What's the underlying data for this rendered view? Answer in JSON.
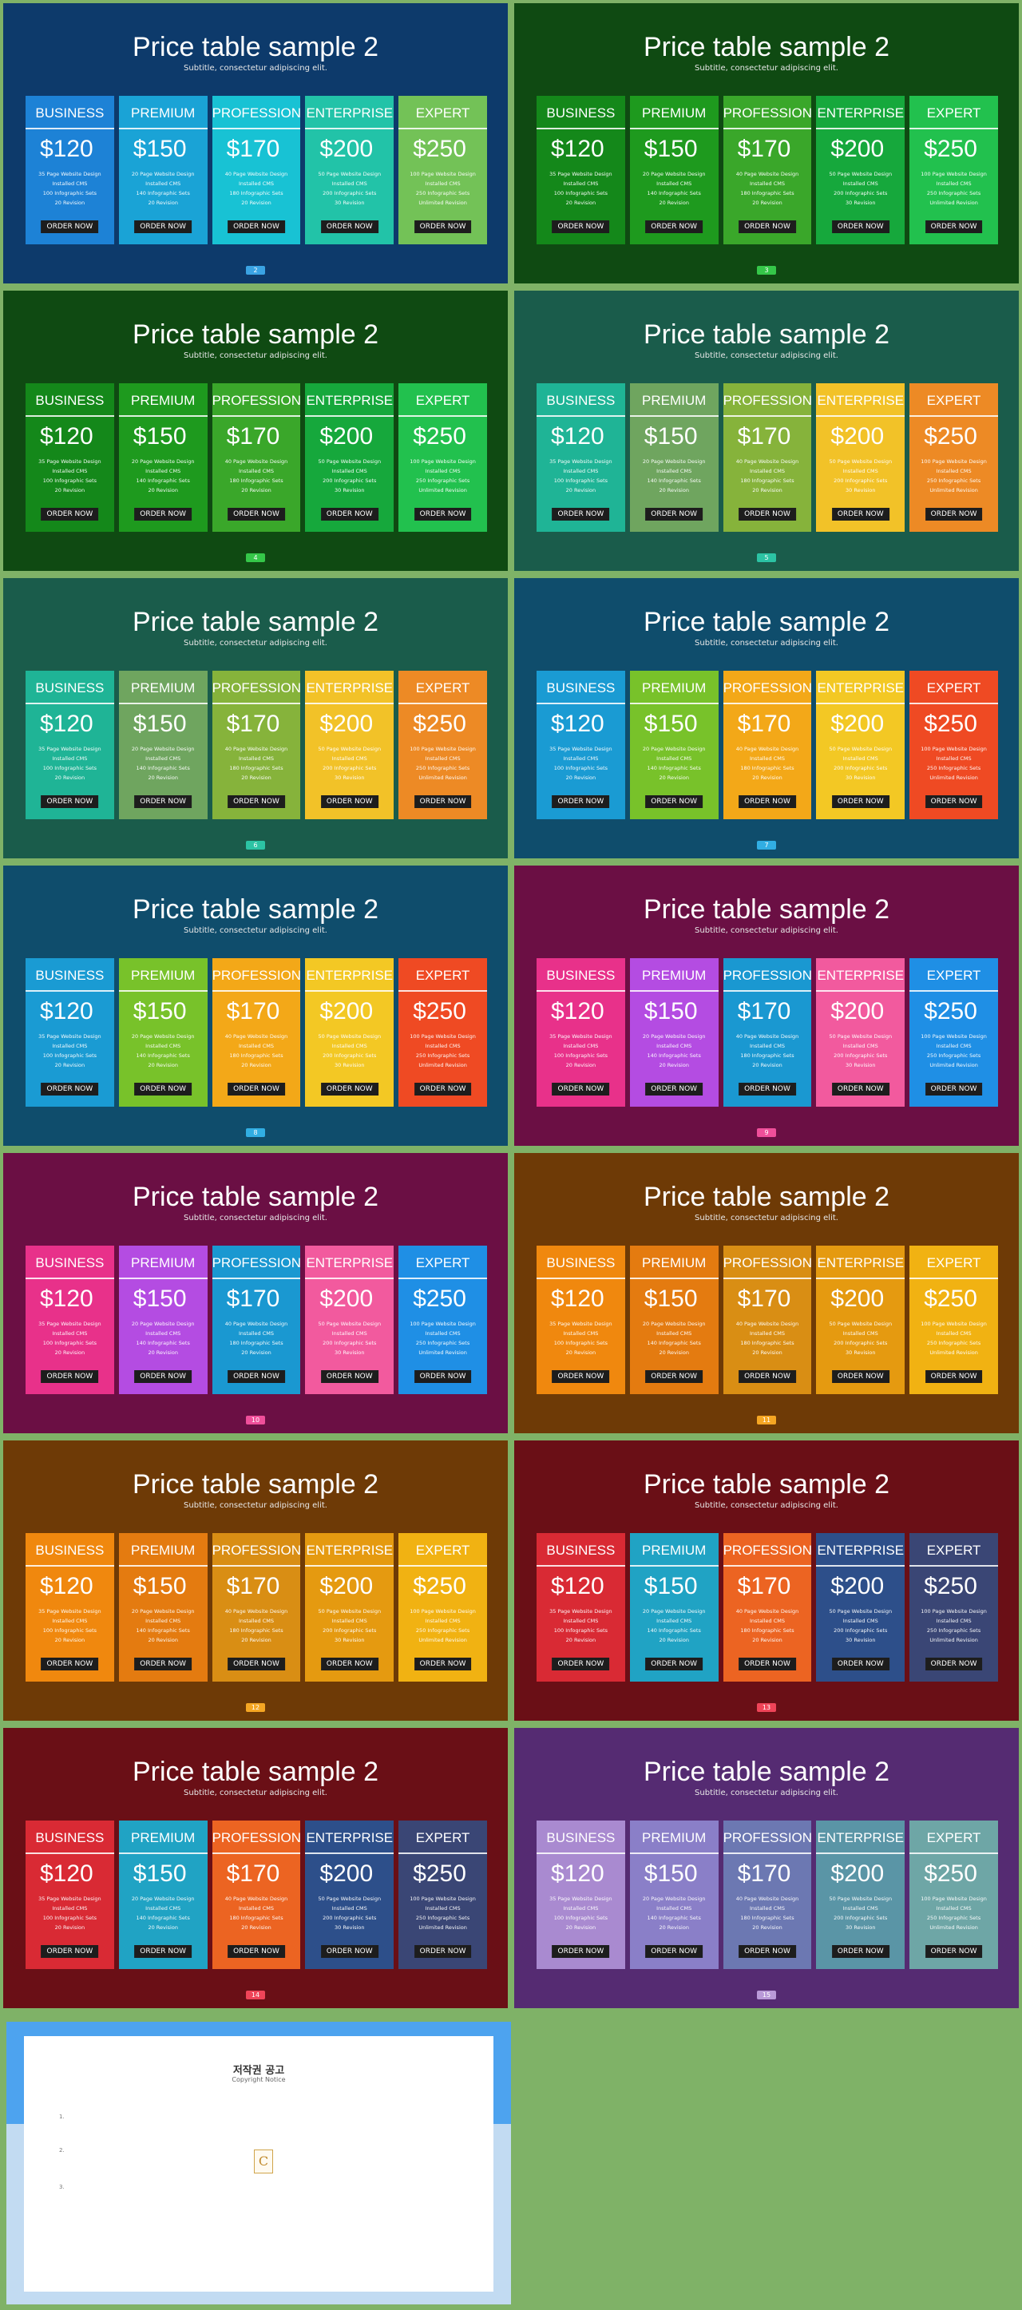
{
  "common": {
    "title": "Price table sample 2",
    "subtitle": "Subtitle, consectetur adipiscing elit.",
    "order_label": "ORDER NOW",
    "plans": [
      {
        "name": "BUSINESS",
        "price": "$120",
        "features": [
          "35 Page Website Design",
          "Installed CMS",
          "100 Infographic Sets",
          "20 Revision"
        ]
      },
      {
        "name": "PREMIUM",
        "price": "$150",
        "features": [
          "20 Page Website Design",
          "Installed CMS",
          "140 Infographic Sets",
          "20 Revision"
        ]
      },
      {
        "name": "PROFESSIONAL",
        "price": "$170",
        "features": [
          "40 Page Website Design",
          "Installed CMS",
          "180 Infographic Sets",
          "20 Revision"
        ]
      },
      {
        "name": "ENTERPRISE",
        "price": "$200",
        "features": [
          "50 Page Website Design",
          "Installed CMS",
          "200 Infographic Sets",
          "30 Revision"
        ]
      },
      {
        "name": "EXPERT",
        "price": "$250",
        "features": [
          "100 Page Website Design",
          "Installed CMS",
          "250 Infographic Sets",
          "Unlimited Revision"
        ]
      }
    ]
  },
  "slides": [
    {
      "page": "2",
      "bg": "#0d3a6b",
      "badge": "#3aa3e3",
      "colors": [
        "#1d82d6",
        "#1aa3d6",
        "#18c2d4",
        "#22c3a8",
        "#73c257"
      ]
    },
    {
      "page": "3",
      "bg": "#0f4a12",
      "badge": "#35c749",
      "colors": [
        "#14881a",
        "#1e9a1e",
        "#3aa72a",
        "#16a83c",
        "#22c14e"
      ]
    },
    {
      "page": "4",
      "bg": "#0f4a12",
      "badge": "#35c749",
      "colors": [
        "#14881a",
        "#1e9a1e",
        "#3aa72a",
        "#16a83c",
        "#22c14e"
      ]
    },
    {
      "page": "5",
      "bg": "#1a5c4b",
      "badge": "#2cc3a4",
      "colors": [
        "#1fb496",
        "#6fa55f",
        "#86b33b",
        "#f2c228",
        "#ed8a25"
      ]
    },
    {
      "page": "6",
      "bg": "#1a5c4b",
      "badge": "#2cc3a4",
      "colors": [
        "#1fb496",
        "#6fa55f",
        "#86b33b",
        "#f2c228",
        "#ed8a25"
      ]
    },
    {
      "page": "7",
      "bg": "#0f4d6c",
      "badge": "#31aee3",
      "colors": [
        "#1a9bd3",
        "#78c22a",
        "#f3a818",
        "#f3c824",
        "#ef4a23"
      ]
    },
    {
      "page": "8",
      "bg": "#0f4d6c",
      "badge": "#31aee3",
      "colors": [
        "#1a9bd3",
        "#78c22a",
        "#f3a818",
        "#f3c824",
        "#ef4a23"
      ]
    },
    {
      "page": "9",
      "bg": "#6b0f44",
      "badge": "#ef4f9a",
      "colors": [
        "#e8318a",
        "#b44ce2",
        "#1a98d1",
        "#f25a9e",
        "#1f8fe5"
      ]
    },
    {
      "page": "10",
      "bg": "#6b0f44",
      "badge": "#ef4f9a",
      "colors": [
        "#e8318a",
        "#b44ce2",
        "#1a98d1",
        "#f25a9e",
        "#1f8fe5"
      ]
    },
    {
      "page": "11",
      "bg": "#6e3a06",
      "badge": "#f5a623",
      "colors": [
        "#f0880e",
        "#e47b10",
        "#d98e14",
        "#e59a10",
        "#f1b212"
      ]
    },
    {
      "page": "12",
      "bg": "#6e3a06",
      "badge": "#f5a623",
      "colors": [
        "#f0880e",
        "#e47b10",
        "#d98e14",
        "#e59a10",
        "#f1b212"
      ]
    },
    {
      "page": "13",
      "bg": "#6a0f16",
      "badge": "#ef4458",
      "colors": [
        "#d92a34",
        "#20a3c4",
        "#ec6422",
        "#2d4f8a",
        "#3a4675"
      ]
    },
    {
      "page": "14",
      "bg": "#6a0f16",
      "badge": "#ef4458",
      "colors": [
        "#d92a34",
        "#20a3c4",
        "#ec6422",
        "#2d4f8a",
        "#3a4675"
      ]
    },
    {
      "page": "15",
      "bg": "#552b72",
      "badge": "#b99ad8",
      "colors": [
        "#a98ad0",
        "#8a7fc8",
        "#6c78b2",
        "#5a95a6",
        "#6ea6a6"
      ]
    }
  ],
  "notice": {
    "title": "저작권 공고",
    "subtitle": "Copyright Notice",
    "logo_letter": "C",
    "paragraphs": [
      "                                                                                                                                      ",
      "1.                                                                                                                                     ",
      "2.                                                                                                                                     ",
      "3.                                                                                                                                     ",
      "                                                                                              "
    ]
  }
}
